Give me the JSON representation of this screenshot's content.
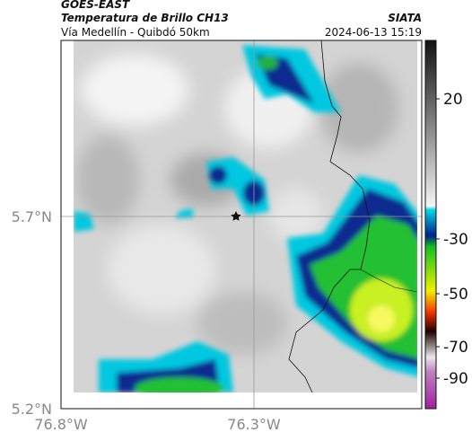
{
  "header": {
    "satellite": "GOES-EAST",
    "product": "Temperatura de Brillo CH13",
    "route": "Vía Medellín - Quibdó 50km",
    "org": "SIATA",
    "datetime": "2024-06-13 15:19"
  },
  "map": {
    "lat_labels": [
      "5.7°N",
      "5.2°N"
    ],
    "lon_labels": [
      "76.8°W",
      "76.3°W"
    ]
  },
  "colorbar": {
    "ticks": [
      20,
      -30,
      -50,
      -70,
      -90
    ]
  }
}
